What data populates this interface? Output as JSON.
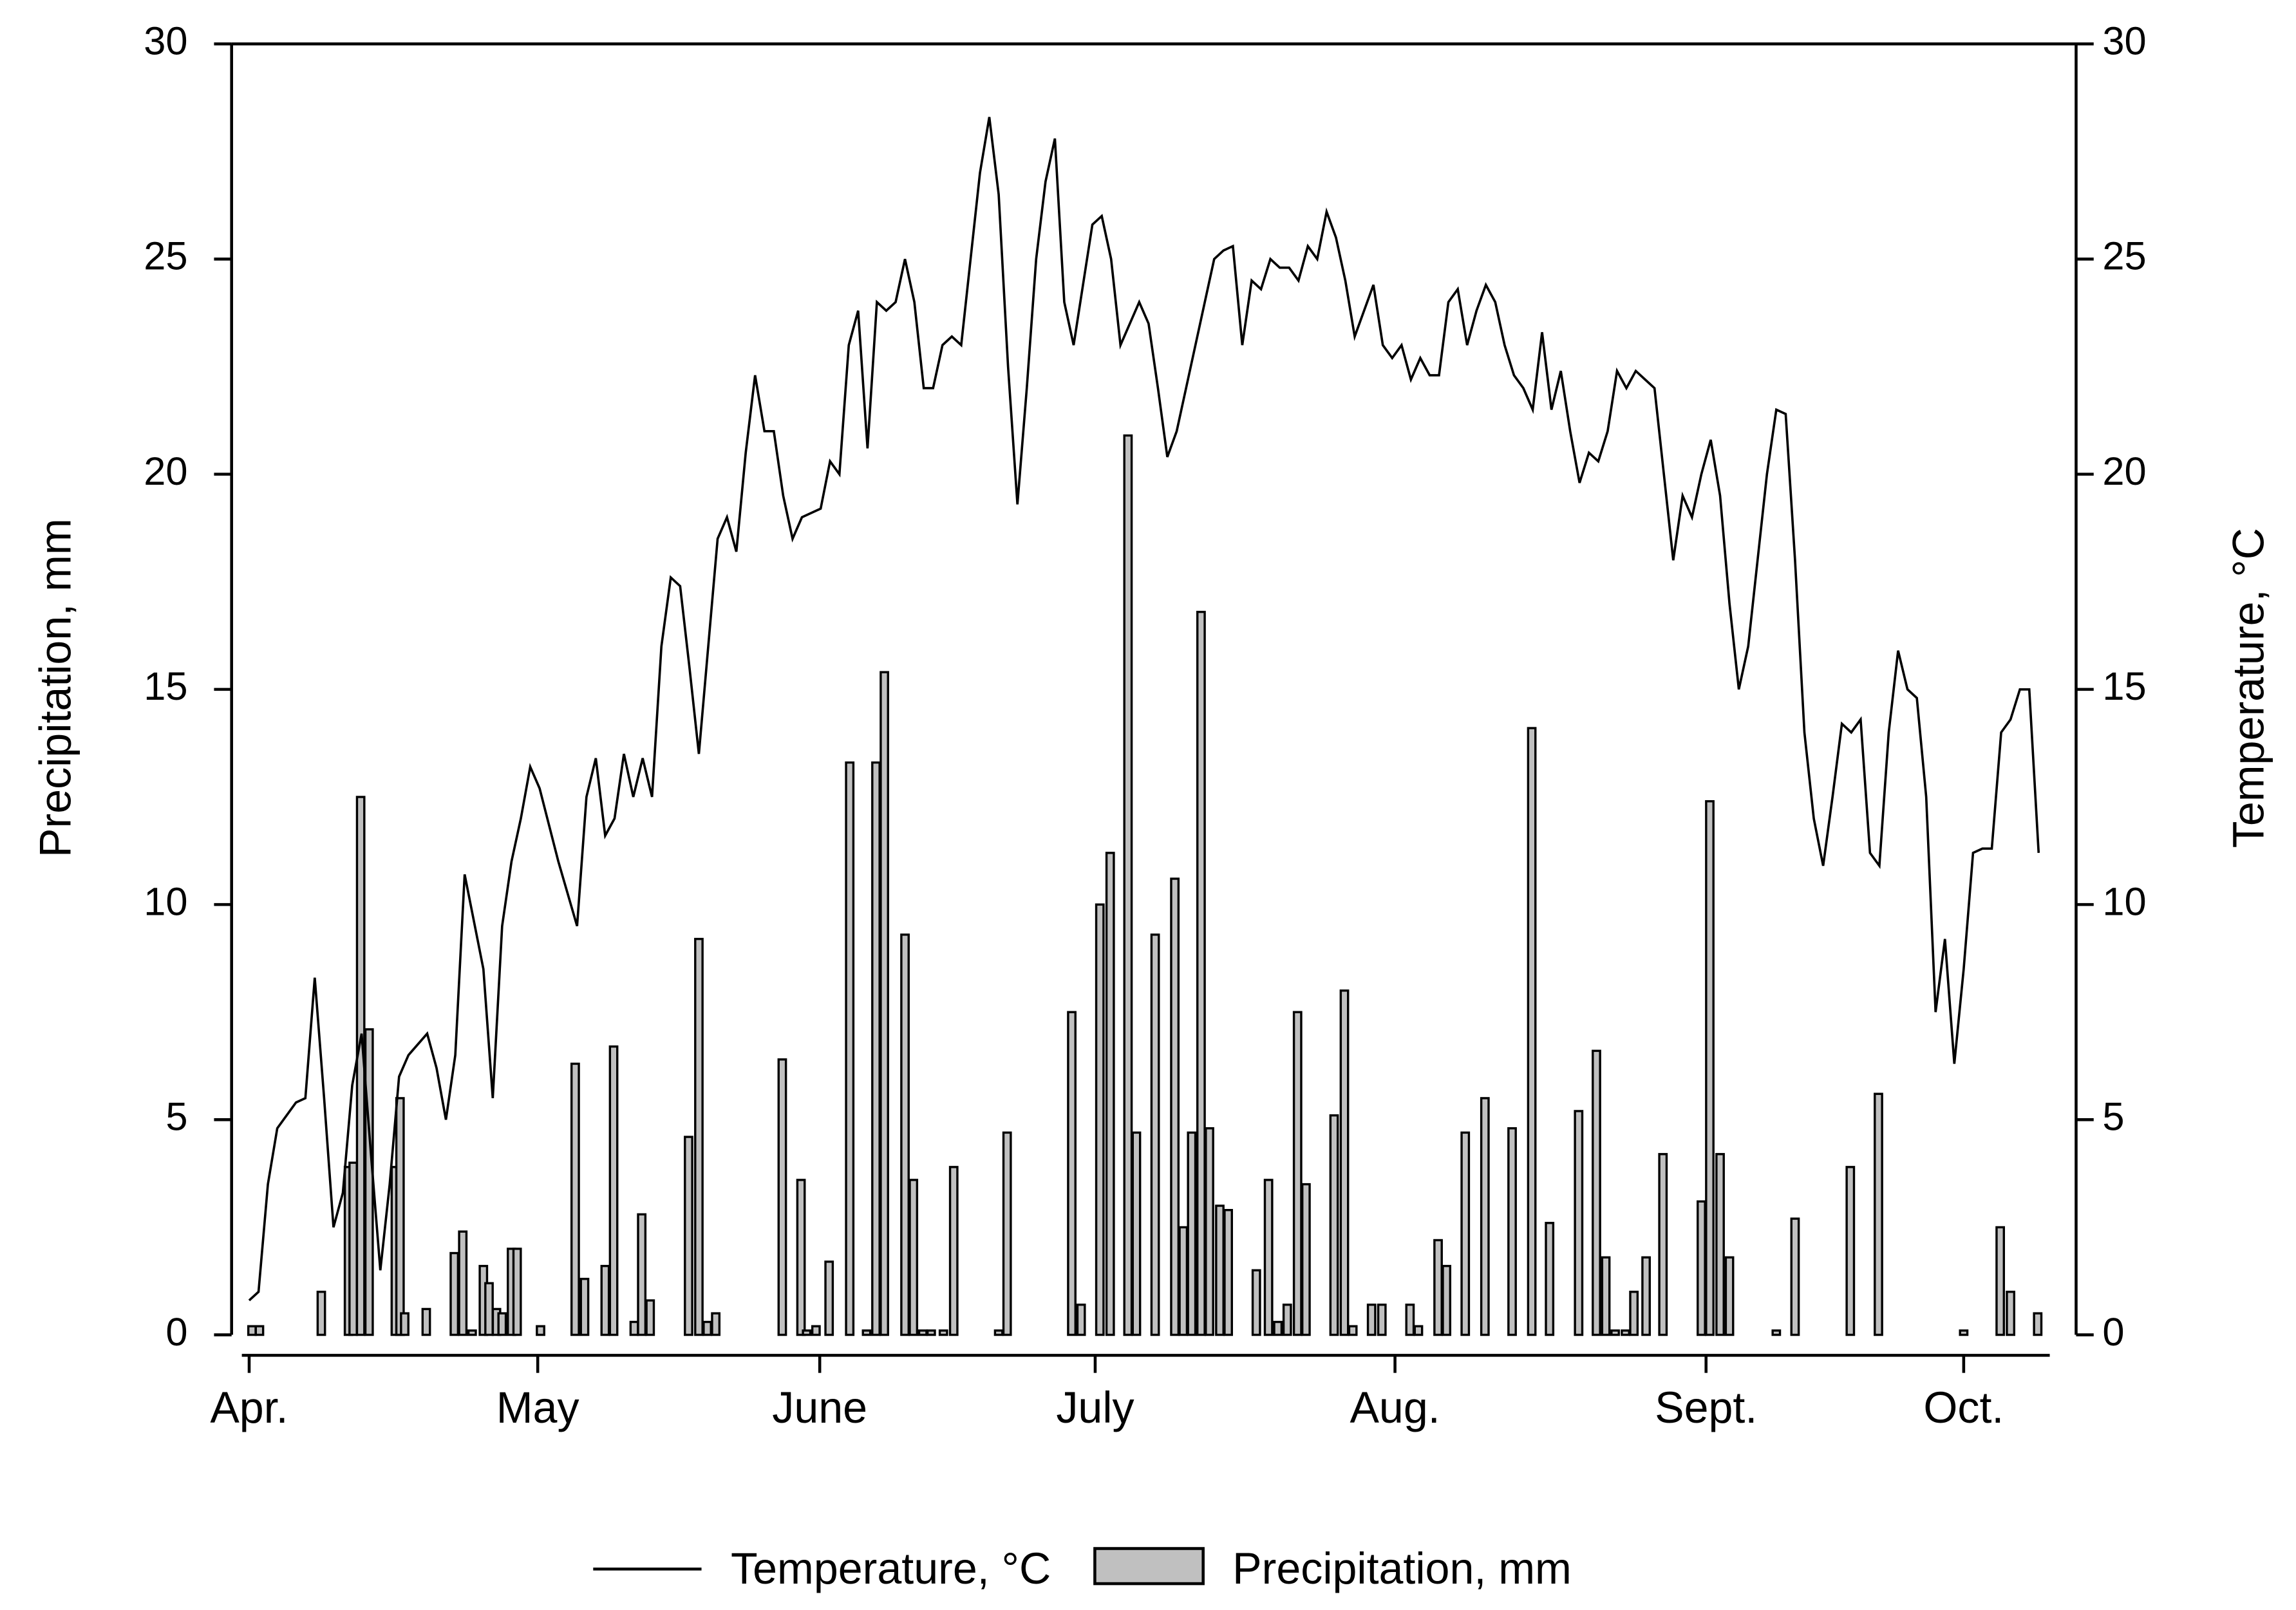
{
  "chart_data": {
    "type": "combo",
    "xlim": [
      -1,
      192
    ],
    "xticks": [
      {
        "value": 0,
        "label": "Apr."
      },
      {
        "value": 30.8,
        "label": "May"
      },
      {
        "value": 60.9,
        "label": "June"
      },
      {
        "value": 90.3,
        "label": "July"
      },
      {
        "value": 122.3,
        "label": "Aug."
      },
      {
        "value": 155.5,
        "label": "Sept."
      },
      {
        "value": 183,
        "label": "Oct."
      }
    ],
    "ylabel": "Precipitation, mm",
    "ylim": [
      0,
      30
    ],
    "yticks": [
      0,
      5,
      10,
      15,
      20,
      25,
      30
    ],
    "y2label": "Temperature, °C",
    "y2lim": [
      0,
      30
    ],
    "y2ticks": [
      0,
      5,
      10,
      15,
      20,
      25,
      30
    ],
    "grid": false,
    "legend": "bottom",
    "series": [
      {
        "name": "Temperature, °C",
        "type": "line",
        "axis": "y2",
        "color": "#000000",
        "x": [
          0,
          1,
          2,
          3,
          5,
          6,
          7,
          8,
          9,
          10,
          11,
          12,
          13,
          14,
          15,
          16,
          17,
          19,
          20,
          21,
          22,
          23,
          25,
          26,
          27,
          28,
          29,
          30,
          31,
          33,
          35,
          36,
          37,
          38,
          39,
          40,
          41,
          42,
          43,
          44,
          45,
          46,
          47,
          48,
          49,
          50,
          51,
          52,
          53,
          54,
          55,
          56,
          57,
          58,
          59,
          61,
          62,
          63,
          64,
          65,
          66,
          67,
          68,
          69,
          70,
          71,
          72,
          73,
          74,
          75,
          76,
          77,
          78,
          79,
          80,
          81,
          82,
          83,
          84,
          85,
          86,
          87,
          88,
          90,
          91,
          92,
          93,
          94,
          95,
          96,
          97,
          98,
          99,
          100,
          101,
          102,
          103,
          104,
          105,
          106,
          107,
          108,
          109,
          110,
          111,
          112,
          113,
          114,
          115,
          116,
          117,
          118,
          119,
          120,
          121,
          122,
          123,
          124,
          125,
          126,
          127,
          128,
          129,
          130,
          131,
          132,
          133,
          134,
          135,
          136,
          137,
          138,
          139,
          140,
          141,
          142,
          143,
          144,
          145,
          146,
          147,
          148,
          149,
          150,
          151,
          152,
          153,
          154,
          155,
          156,
          157,
          158,
          159,
          160,
          161,
          162,
          163,
          164,
          165,
          166,
          167,
          168,
          169,
          170,
          171,
          172,
          173,
          174,
          175,
          176,
          177,
          178,
          179,
          180,
          181,
          182,
          183,
          184,
          185,
          186,
          187,
          188,
          189,
          190,
          191
        ],
        "values": [
          0.8,
          1.0,
          3.5,
          4.8,
          5.4,
          5.5,
          8.3,
          5.5,
          2.5,
          3.3,
          5.8,
          7.0,
          4.2,
          1.5,
          3.5,
          6.0,
          6.5,
          7.0,
          6.2,
          5.0,
          6.5,
          10.7,
          8.5,
          5.5,
          9.5,
          11.0,
          12.0,
          13.2,
          12.7,
          11.0,
          9.5,
          12.5,
          13.4,
          11.6,
          12.0,
          13.5,
          12.5,
          13.4,
          12.5,
          16.0,
          17.6,
          17.4,
          15.5,
          13.5,
          16.0,
          18.5,
          19.0,
          18.2,
          20.5,
          22.3,
          21.0,
          21.0,
          19.5,
          18.5,
          19.0,
          19.2,
          20.3,
          20.0,
          23.0,
          23.8,
          20.6,
          24.0,
          23.8,
          24.0,
          25.0,
          24.0,
          22.0,
          22.0,
          23.0,
          23.2,
          23.0,
          25.0,
          27.0,
          28.3,
          26.5,
          22.5,
          19.3,
          22.0,
          25.0,
          26.8,
          27.8,
          24.0,
          23.0,
          25.8,
          26.0,
          25.0,
          23.0,
          23.5,
          24.0,
          23.5,
          22.0,
          20.4,
          21.0,
          22.0,
          23.0,
          24.0,
          25.0,
          25.2,
          25.3,
          23.0,
          24.5,
          24.3,
          25.0,
          24.8,
          24.8,
          24.5,
          25.3,
          25.0,
          26.1,
          25.5,
          24.5,
          23.2,
          23.8,
          24.4,
          23.0,
          22.7,
          23.0,
          22.2,
          22.7,
          22.3,
          22.3,
          24.0,
          24.3,
          23.0,
          23.8,
          24.4,
          24.0,
          23.0,
          22.3,
          22.0,
          21.5,
          23.3,
          21.5,
          22.4,
          21.0,
          19.8,
          20.5,
          20.3,
          21.0,
          22.4,
          22.0,
          22.4,
          22.2,
          22.0,
          20.0,
          18.0,
          19.5,
          19.0,
          20.0,
          20.8,
          19.5,
          17.0,
          15.0,
          16.0,
          18.0,
          20.0,
          21.5,
          21.4,
          18.0,
          14.0,
          12.0,
          10.9,
          12.5,
          14.2,
          14.0,
          14.3,
          11.2,
          10.9,
          14.0,
          15.9,
          15.0,
          14.8,
          12.5,
          7.5,
          9.2,
          6.3,
          8.5,
          11.2,
          11.3,
          11.3,
          14.0,
          14.3,
          15.0,
          15.0,
          11.2
        ]
      },
      {
        "name": "Precipitation, mm",
        "type": "bar",
        "color": "#c0c0c0",
        "x": [
          0.3,
          1.1,
          7.7,
          10.6,
          11.1,
          11.9,
          12.8,
          15.6,
          16.1,
          16.6,
          18.9,
          21.9,
          22.8,
          23.8,
          25.0,
          25.6,
          26.4,
          27.0,
          28.0,
          28.6,
          31.1,
          34.8,
          35.8,
          38.0,
          38.9,
          41.1,
          41.9,
          42.8,
          46.9,
          48.0,
          48.9,
          49.8,
          56.9,
          58.9,
          59.5,
          60.5,
          61.9,
          64.1,
          65.9,
          66.9,
          67.8,
          70.0,
          70.9,
          71.9,
          72.8,
          74.1,
          75.2,
          80.0,
          80.9,
          87.8,
          88.8,
          90.8,
          91.9,
          93.8,
          94.7,
          96.7,
          98.8,
          99.7,
          100.6,
          101.6,
          102.5,
          103.6,
          104.5,
          107.5,
          108.8,
          109.8,
          110.8,
          111.9,
          112.8,
          115.8,
          116.9,
          117.8,
          119.8,
          120.9,
          123.9,
          124.8,
          126.9,
          127.8,
          129.8,
          131.9,
          134.8,
          136.9,
          138.8,
          141.9,
          143.8,
          144.8,
          145.8,
          146.9,
          147.8,
          149.1,
          150.9,
          155.0,
          155.9,
          157.0,
          158.0,
          163.0,
          165.0,
          170.9,
          173.9,
          183.0,
          186.9,
          188.0,
          190.9
        ],
        "values": [
          0.2,
          0.2,
          1.0,
          3.9,
          4.0,
          12.5,
          7.1,
          3.9,
          5.5,
          0.5,
          0.6,
          1.9,
          2.4,
          0.1,
          1.6,
          1.2,
          0.6,
          0.5,
          2.0,
          2.0,
          0.2,
          6.3,
          1.3,
          1.6,
          6.7,
          0.3,
          2.8,
          0.8,
          4.6,
          9.2,
          0.3,
          0.5,
          6.4,
          3.6,
          0.1,
          0.2,
          1.7,
          13.3,
          0.1,
          13.3,
          15.4,
          9.3,
          3.6,
          0.1,
          0.1,
          0.1,
          3.9,
          0.1,
          4.7,
          7.5,
          0.7,
          10.0,
          11.2,
          20.9,
          4.7,
          9.3,
          10.6,
          2.5,
          4.7,
          16.8,
          4.8,
          3.0,
          2.9,
          1.5,
          3.6,
          0.3,
          0.7,
          7.5,
          3.5,
          5.1,
          8.0,
          0.2,
          0.7,
          0.7,
          0.7,
          0.2,
          2.2,
          1.6,
          4.7,
          5.5,
          4.8,
          14.1,
          2.6,
          5.2,
          6.6,
          1.8,
          0.1,
          0.1,
          1.0,
          1.8,
          4.2,
          3.1,
          12.4,
          4.2,
          1.8,
          0.1,
          2.7,
          3.9,
          5.6,
          0.1,
          2.5,
          1.0,
          0.5
        ]
      }
    ]
  }
}
